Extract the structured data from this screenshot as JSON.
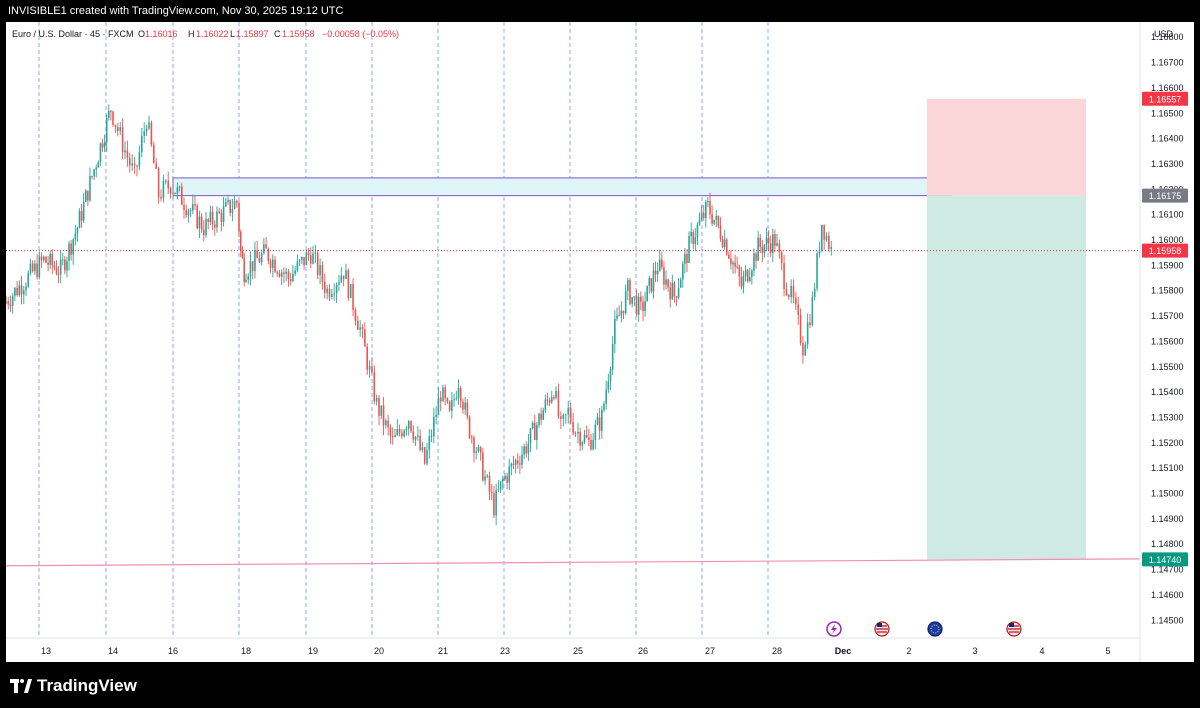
{
  "header": {
    "creator_line": "INVISIBLE1 created with TradingView.com, Nov 30, 2025 19:12 UTC"
  },
  "legend": {
    "symbol": "Euro / U.S. Dollar · 45 · FXCM",
    "o_label": "O",
    "o_value": "1.16016",
    "h_label": "H",
    "h_value": "1.16022",
    "l_label": "L",
    "l_value": "1.15897",
    "c_label": "C",
    "c_value": "1.15958",
    "change": "−0.00058 (−0.05%)"
  },
  "footer": {
    "brand": "TradingView"
  },
  "colors": {
    "up": "#26a69a",
    "down": "#ef5350",
    "vline": "#2962ff",
    "zone_fill": "#e0f5f7",
    "zone_border": "#7e57c2",
    "stop_fill": "#fbd6d8",
    "target_fill": "#cfe9e3",
    "stop_tag": "#f23645",
    "entry_tag": "#787b86",
    "target_tag": "#089981",
    "price_tag": "#f23645"
  },
  "chart_data": {
    "type": "candlestick",
    "symbol": "EURUSD",
    "timeframe": "45",
    "currency_label": "USD",
    "ylim": [
      1.1443,
      1.1686
    ],
    "y_ticks": [
      "1.16800",
      "1.16700",
      "1.16600",
      "1.16500",
      "1.16400",
      "1.16300",
      "1.16200",
      "1.16100",
      "1.16000",
      "1.15900",
      "1.15800",
      "1.15700",
      "1.15600",
      "1.15500",
      "1.15400",
      "1.15300",
      "1.15200",
      "1.15100",
      "1.15000",
      "1.14900",
      "1.14800",
      "1.14700",
      "1.14600",
      "1.14500"
    ],
    "x_ticks": [
      "13",
      "14",
      "16",
      "18",
      "19",
      "20",
      "21",
      "23",
      "25",
      "26",
      "27",
      "28",
      "Dec",
      "2",
      "3",
      "4",
      "5"
    ],
    "day_separators": [
      "13",
      "14",
      "16",
      "17",
      "18",
      "19",
      "20",
      "21",
      "22",
      "24",
      "25",
      "26",
      "27"
    ],
    "price_labels": [
      {
        "name": "stop",
        "value": "1.16557",
        "price": 1.16557
      },
      {
        "name": "entry",
        "value": "1.16175",
        "price": 1.16175
      },
      {
        "name": "current",
        "value": "1.15958",
        "price": 1.15958
      },
      {
        "name": "target",
        "value": "1.14740",
        "price": 1.1474
      }
    ],
    "supply_zone": {
      "top": 1.16245,
      "bottom": 1.16175,
      "from": "Nov 16",
      "to": "Dec 2"
    },
    "short_position": {
      "entry": 1.16175,
      "stop": 1.16557,
      "target": 1.1474,
      "from": "Dec 2",
      "to": "Dec 4"
    },
    "horizontal_line": {
      "left_price": 1.14715,
      "right_price": 1.14742
    },
    "current_price": 1.15958,
    "price_path": [
      {
        "date": "Nov 12",
        "price": 1.1575
      },
      {
        "date": "Nov 13",
        "price": 1.1592
      },
      {
        "date": "Nov 13",
        "price": 1.1588
      },
      {
        "date": "Nov 13",
        "price": 1.1605
      },
      {
        "date": "Nov 13",
        "price": 1.1628
      },
      {
        "date": "Nov 14",
        "price": 1.1652
      },
      {
        "date": "Nov 14",
        "price": 1.1638
      },
      {
        "date": "Nov 14",
        "price": 1.1625
      },
      {
        "date": "Nov 14",
        "price": 1.1648
      },
      {
        "date": "Nov 14",
        "price": 1.1618
      },
      {
        "date": "Nov 16",
        "price": 1.1622
      },
      {
        "date": "Nov 16",
        "price": 1.1605
      },
      {
        "date": "Nov 17",
        "price": 1.1615
      },
      {
        "date": "Nov 17",
        "price": 1.1595
      },
      {
        "date": "Nov 18",
        "price": 1.1588
      },
      {
        "date": "Nov 18",
        "price": 1.1595
      },
      {
        "date": "Nov 18",
        "price": 1.1585
      },
      {
        "date": "Nov 19",
        "price": 1.1595
      },
      {
        "date": "Nov 19",
        "price": 1.158
      },
      {
        "date": "Nov 19",
        "price": 1.1588
      },
      {
        "date": "Nov 19",
        "price": 1.1565
      },
      {
        "date": "Nov 20",
        "price": 1.1535
      },
      {
        "date": "Nov 20",
        "price": 1.152
      },
      {
        "date": "Nov 20",
        "price": 1.153
      },
      {
        "date": "Nov 20",
        "price": 1.1512
      },
      {
        "date": "Nov 21",
        "price": 1.154
      },
      {
        "date": "Nov 21",
        "price": 1.153
      },
      {
        "date": "Nov 21",
        "price": 1.1545
      },
      {
        "date": "Nov 21",
        "price": 1.1528
      },
      {
        "date": "Nov 21",
        "price": 1.1518
      },
      {
        "date": "Nov 21",
        "price": 1.1506
      },
      {
        "date": "Nov 21",
        "price": 1.1495
      },
      {
        "date": "Nov 23",
        "price": 1.1505
      },
      {
        "date": "Nov 23",
        "price": 1.152
      },
      {
        "date": "Nov 24",
        "price": 1.1542
      },
      {
        "date": "Nov 24",
        "price": 1.1525
      },
      {
        "date": "Nov 24",
        "price": 1.1532
      },
      {
        "date": "Nov 25",
        "price": 1.1525
      },
      {
        "date": "Nov 25",
        "price": 1.152
      },
      {
        "date": "Nov 25",
        "price": 1.153
      },
      {
        "date": "Nov 25",
        "price": 1.1565
      },
      {
        "date": "Nov 25",
        "price": 1.158
      },
      {
        "date": "Nov 26",
        "price": 1.1572
      },
      {
        "date": "Nov 26",
        "price": 1.159
      },
      {
        "date": "Nov 26",
        "price": 1.1578
      },
      {
        "date": "Nov 26",
        "price": 1.16
      },
      {
        "date": "Nov 27",
        "price": 1.1613
      },
      {
        "date": "Nov 27",
        "price": 1.16
      },
      {
        "date": "Nov 27",
        "price": 1.1582
      },
      {
        "date": "Nov 27",
        "price": 1.1597
      },
      {
        "date": "Nov 28",
        "price": 1.16
      },
      {
        "date": "Nov 28",
        "price": 1.1585
      },
      {
        "date": "Nov 28",
        "price": 1.1575
      },
      {
        "date": "Nov 28",
        "price": 1.1558
      },
      {
        "date": "Nov 28",
        "price": 1.1575
      },
      {
        "date": "Nov 28",
        "price": 1.1607
      },
      {
        "date": "Nov 28",
        "price": 1.1596
      }
    ]
  }
}
